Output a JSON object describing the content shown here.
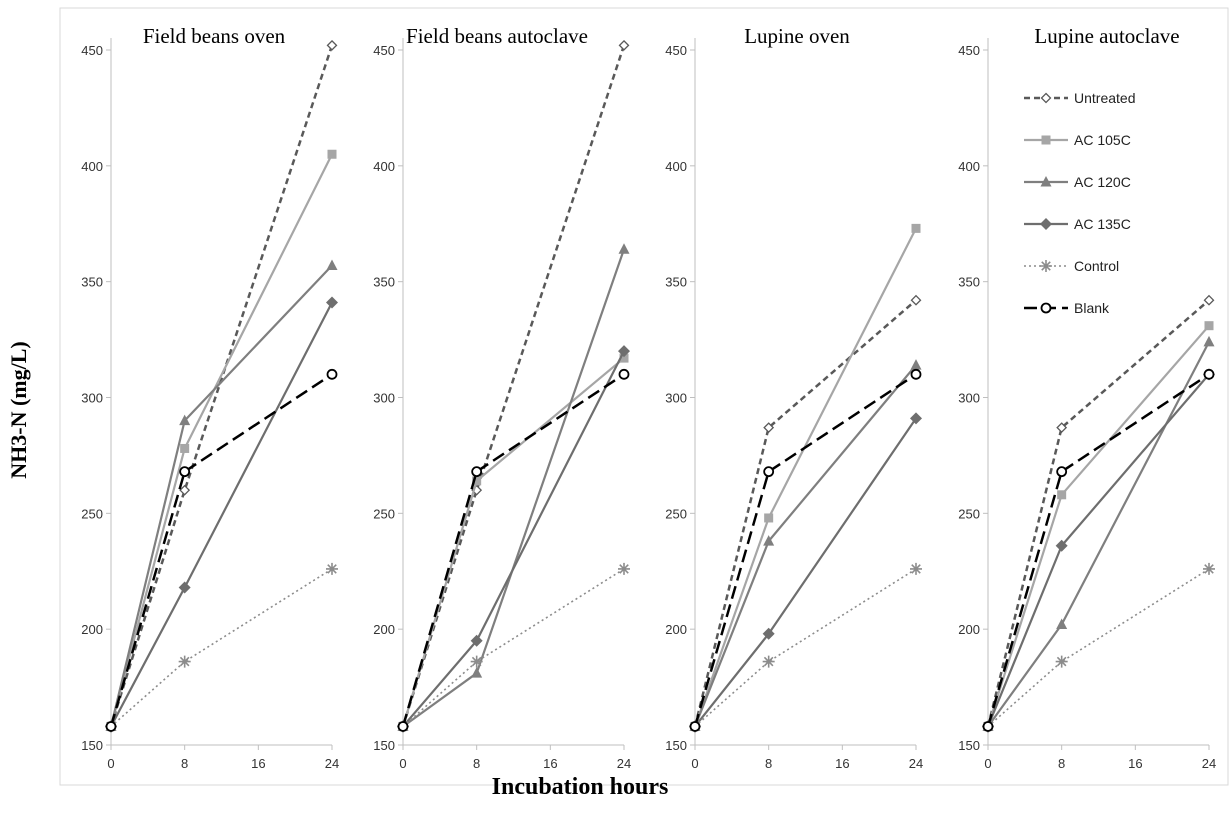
{
  "figure": {
    "ylabel": "NH3-N (mg/L)",
    "xlabel": "Incubation hours"
  },
  "series_styles": [
    {
      "name": "Untreated",
      "color": "#595959",
      "dash": "6,4",
      "marker": "diamond-open",
      "width": 2.5
    },
    {
      "name": "AC 105C",
      "color": "#a6a6a6",
      "dash": "",
      "marker": "square",
      "width": 2.2
    },
    {
      "name": "AC 120C",
      "color": "#7f7f7f",
      "dash": "",
      "marker": "triangle",
      "width": 2.2
    },
    {
      "name": "AC 135C",
      "color": "#6e6e6e",
      "dash": "",
      "marker": "diamond",
      "width": 2.2
    },
    {
      "name": "Control",
      "color": "#8c8c8c",
      "dash": "2,3",
      "marker": "star",
      "width": 1.6
    },
    {
      "name": "Blank",
      "color": "#000000",
      "dash": "13,6",
      "marker": "circle-open",
      "width": 2.5
    }
  ],
  "chart_data": [
    {
      "type": "line",
      "title": "Field beans oven",
      "x": [
        0,
        8,
        24
      ],
      "xticks": [
        0,
        8,
        16,
        24
      ],
      "xlim": [
        0,
        24
      ],
      "ylim": [
        150,
        450
      ],
      "yticks": [
        150,
        200,
        250,
        300,
        350,
        400,
        450
      ],
      "series": [
        {
          "name": "Untreated",
          "values": [
            158,
            260,
            452
          ]
        },
        {
          "name": "AC 105C",
          "values": [
            158,
            278,
            405
          ]
        },
        {
          "name": "AC 120C",
          "values": [
            158,
            290,
            357
          ]
        },
        {
          "name": "AC 135C",
          "values": [
            158,
            218,
            341
          ]
        },
        {
          "name": "Control",
          "values": [
            158,
            186,
            226
          ]
        },
        {
          "name": "Blank",
          "values": [
            158,
            268,
            310
          ]
        }
      ]
    },
    {
      "type": "line",
      "title": "Field beans autoclave",
      "x": [
        0,
        8,
        24
      ],
      "xticks": [
        0,
        8,
        16,
        24
      ],
      "xlim": [
        0,
        24
      ],
      "ylim": [
        150,
        450
      ],
      "yticks": [
        150,
        200,
        250,
        300,
        350,
        400,
        450
      ],
      "series": [
        {
          "name": "Untreated",
          "values": [
            158,
            260,
            452
          ]
        },
        {
          "name": "AC 105C",
          "values": [
            158,
            264,
            317
          ]
        },
        {
          "name": "AC 120C",
          "values": [
            158,
            181,
            364
          ]
        },
        {
          "name": "AC 135C",
          "values": [
            158,
            195,
            320
          ]
        },
        {
          "name": "Control",
          "values": [
            158,
            186,
            226
          ]
        },
        {
          "name": "Blank",
          "values": [
            158,
            268,
            310
          ]
        }
      ]
    },
    {
      "type": "line",
      "title": "Lupine oven",
      "x": [
        0,
        8,
        24
      ],
      "xticks": [
        0,
        8,
        16,
        24
      ],
      "xlim": [
        0,
        24
      ],
      "ylim": [
        150,
        450
      ],
      "yticks": [
        150,
        200,
        250,
        300,
        350,
        400,
        450
      ],
      "series": [
        {
          "name": "Untreated",
          "values": [
            158,
            287,
            342
          ]
        },
        {
          "name": "AC 105C",
          "values": [
            158,
            248,
            373
          ]
        },
        {
          "name": "AC 120C",
          "values": [
            158,
            238,
            314
          ]
        },
        {
          "name": "AC 135C",
          "values": [
            158,
            198,
            291
          ]
        },
        {
          "name": "Control",
          "values": [
            158,
            186,
            226
          ]
        },
        {
          "name": "Blank",
          "values": [
            158,
            268,
            310
          ]
        }
      ]
    },
    {
      "type": "line",
      "title": "Lupine autoclave",
      "x": [
        0,
        8,
        24
      ],
      "xticks": [
        0,
        8,
        16,
        24
      ],
      "xlim": [
        0,
        24
      ],
      "ylim": [
        150,
        450
      ],
      "yticks": [
        150,
        200,
        250,
        300,
        350,
        400,
        450
      ],
      "legend": "right",
      "series": [
        {
          "name": "Untreated",
          "values": [
            158,
            287,
            342
          ]
        },
        {
          "name": "AC 105C",
          "values": [
            158,
            258,
            331
          ]
        },
        {
          "name": "AC 120C",
          "values": [
            158,
            202,
            324
          ]
        },
        {
          "name": "AC 135C",
          "values": [
            158,
            236,
            310
          ]
        },
        {
          "name": "Control",
          "values": [
            158,
            186,
            226
          ]
        },
        {
          "name": "Blank",
          "values": [
            158,
            268,
            310
          ]
        }
      ]
    }
  ]
}
